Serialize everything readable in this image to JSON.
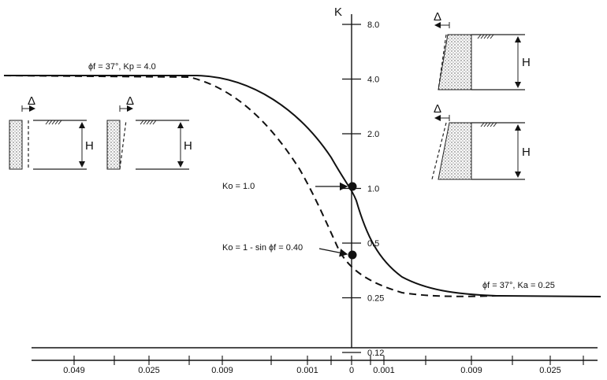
{
  "chart_data": {
    "type": "line",
    "title": "",
    "ylabel": "K",
    "xlabel": "",
    "y_ticks": [
      "8.0",
      "4.0",
      "2.0",
      "1.0",
      "0.5",
      "0.25",
      "0.12"
    ],
    "x_ticks": [
      "0.049",
      "0.025",
      "0.009",
      "0.001",
      "0",
      "0.001",
      "0.009",
      "0.025"
    ],
    "series": [
      {
        "style": "solid",
        "x": [
          -0.049,
          -0.025,
          -0.009,
          -0.001,
          0,
          0.001,
          0.009,
          0.025
        ],
        "y": [
          4.0,
          3.9,
          3.0,
          1.4,
          1.0,
          0.55,
          0.25,
          0.25
        ]
      },
      {
        "style": "dashed",
        "x": [
          -0.049,
          -0.025,
          -0.009,
          -0.001,
          0,
          0.001,
          0.009,
          0.025
        ],
        "y": [
          4.0,
          3.6,
          2.2,
          0.75,
          0.4,
          0.3,
          0.25,
          0.25
        ]
      }
    ],
    "points": [
      {
        "x": 0,
        "y": 1.0
      },
      {
        "x": 0,
        "y": 0.4
      }
    ],
    "annotations": {
      "passive": "ϕf = 37°, Kp = 4.0",
      "active": "ϕf = 37°, Ka = 0.25",
      "ko_one": "Ko = 1.0",
      "ko_sin": "Ko = 1 - sin ϕf = 0.40"
    },
    "diagram_labels": {
      "delta": "Δ",
      "height": "H"
    },
    "grid": false,
    "legend": "none"
  }
}
